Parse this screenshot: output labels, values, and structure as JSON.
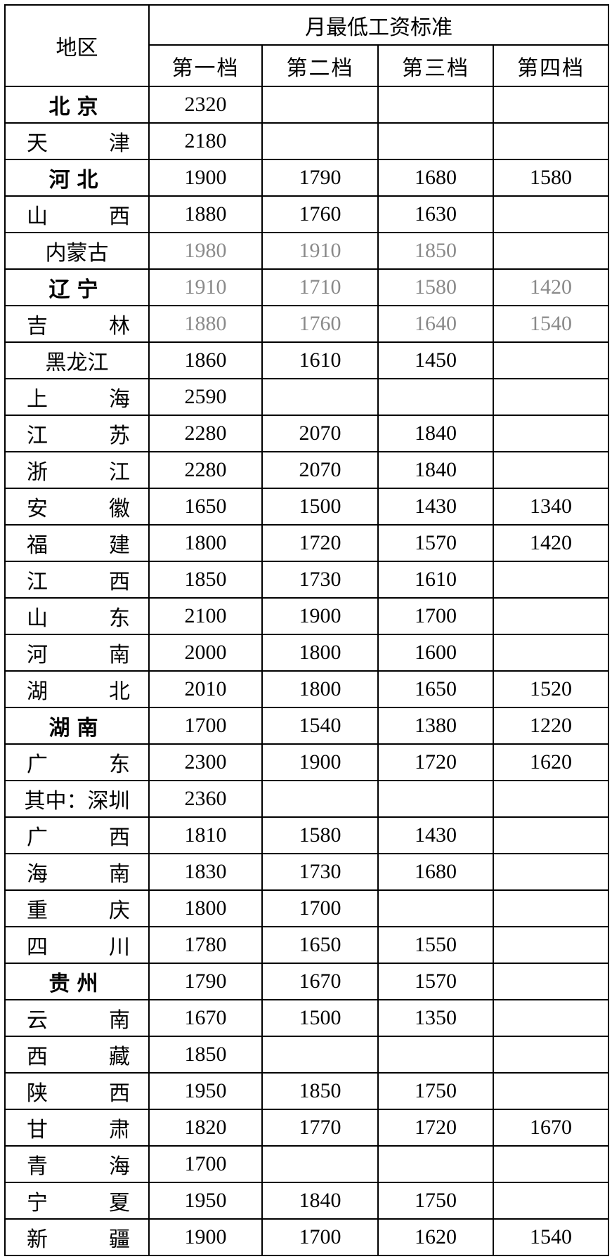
{
  "table": {
    "header": {
      "region": "地区",
      "title": "月最低工资标准",
      "tiers": [
        "第一档",
        "第二档",
        "第三档",
        "第四档"
      ]
    },
    "rows": [
      {
        "region": "北京",
        "values": [
          2320
        ]
      },
      {
        "region": "天津",
        "values": [
          2180
        ]
      },
      {
        "region": "河北",
        "values": [
          1900,
          1790,
          1680,
          1580
        ]
      },
      {
        "region": "山西",
        "values": [
          1880,
          1760,
          1630
        ]
      },
      {
        "region": "内蒙古",
        "values": [
          1980,
          1910,
          1850
        ]
      },
      {
        "region": "辽宁",
        "values": [
          1910,
          1710,
          1580,
          1420
        ]
      },
      {
        "region": "吉林",
        "values": [
          1880,
          1760,
          1640,
          1540
        ]
      },
      {
        "region": "黑龙江",
        "values": [
          1860,
          1610,
          1450
        ]
      },
      {
        "region": "上海",
        "values": [
          2590
        ]
      },
      {
        "region": "江苏",
        "values": [
          2280,
          2070,
          1840
        ]
      },
      {
        "region": "浙江",
        "values": [
          2280,
          2070,
          1840
        ]
      },
      {
        "region": "安徽",
        "values": [
          1650,
          1500,
          1430,
          1340
        ]
      },
      {
        "region": "福建",
        "values": [
          1800,
          1720,
          1570,
          1420
        ]
      },
      {
        "region": "江西",
        "values": [
          1850,
          1730,
          1610
        ]
      },
      {
        "region": "山东",
        "values": [
          2100,
          1900,
          1700
        ]
      },
      {
        "region": "河南",
        "values": [
          2000,
          1800,
          1600
        ]
      },
      {
        "region": "湖北",
        "values": [
          2010,
          1800,
          1650,
          1520
        ]
      },
      {
        "region": "湖南",
        "values": [
          1700,
          1540,
          1380,
          1220
        ]
      },
      {
        "region": "广东",
        "values": [
          2300,
          1900,
          1720,
          1620
        ]
      },
      {
        "region": "其中：深圳",
        "values": [
          2360
        ]
      },
      {
        "region": "广西",
        "values": [
          1810,
          1580,
          1430
        ]
      },
      {
        "region": "海南",
        "values": [
          1830,
          1730,
          1680
        ]
      },
      {
        "region": "重庆",
        "values": [
          1800,
          1700
        ]
      },
      {
        "region": "四川",
        "values": [
          1780,
          1650,
          1550
        ]
      },
      {
        "region": "贵州",
        "values": [
          1790,
          1670,
          1570
        ]
      },
      {
        "region": "云南",
        "values": [
          1670,
          1500,
          1350
        ]
      },
      {
        "region": "西藏",
        "values": [
          1850
        ]
      },
      {
        "region": "陕西",
        "values": [
          1950,
          1850,
          1750
        ]
      },
      {
        "region": "甘肃",
        "values": [
          1820,
          1770,
          1720,
          1670
        ]
      },
      {
        "region": "青海",
        "values": [
          1700
        ]
      },
      {
        "region": "宁夏",
        "values": [
          1950,
          1840,
          1750
        ]
      },
      {
        "region": "新疆",
        "values": [
          1900,
          1700,
          1620,
          1540
        ]
      }
    ]
  }
}
